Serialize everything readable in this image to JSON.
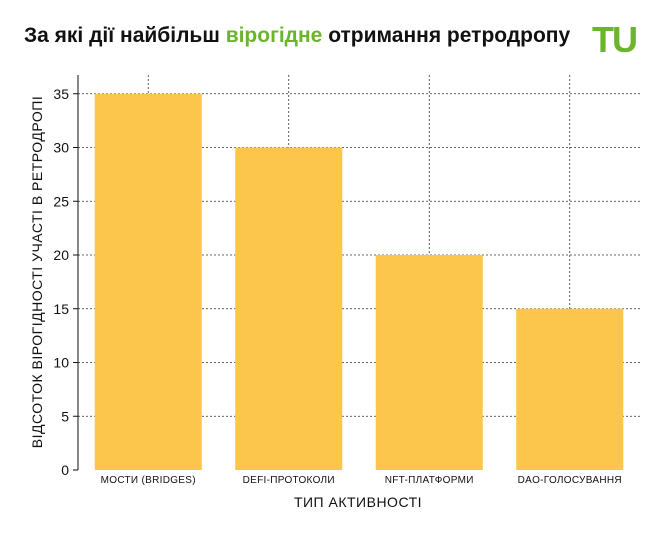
{
  "header": {
    "title_before": "За які дії найбільш ",
    "title_highlight": "вірогідне",
    "title_after": " отримання ретродропу",
    "highlight_color": "#6bb52a"
  },
  "logo": {
    "text": "TU",
    "color": "#6bb52a",
    "icon": "tu-logo-icon"
  },
  "chart_data": {
    "type": "bar",
    "categories": [
      "МОСТИ (BRIDGES)",
      "DEFI-ПРОТОКОЛИ",
      "NFT-ПЛАТФОРМИ",
      "DAO-ГОЛОСУВАННЯ"
    ],
    "values": [
      35,
      30,
      20,
      15
    ],
    "xlabel": "ТИП АКТИВНОСТІ",
    "ylabel": "ВІДСОТОК ВІРОГІДНОСТІ УЧАСТІ В РЕТРОДРОПІ",
    "ylim": [
      0,
      36
    ],
    "yticks": [
      0,
      5,
      10,
      15,
      20,
      25,
      30,
      35
    ],
    "bar_color": "#fcc54c",
    "grid": true
  }
}
